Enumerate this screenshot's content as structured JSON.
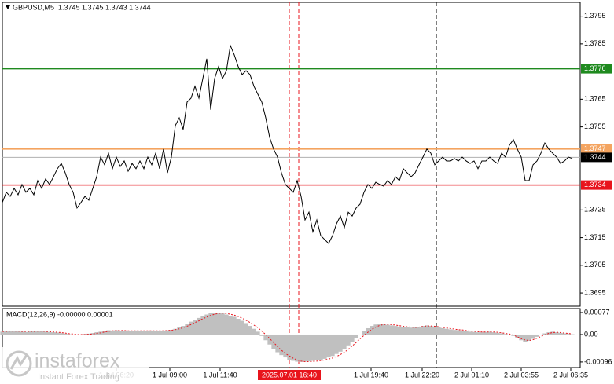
{
  "chart_data": [
    {
      "type": "line",
      "title": "GBPUSD,M5  1.3745 1.3745 1.3743 1.3744",
      "series": [
        {
          "name": "GBPUSD",
          "color": "#000000",
          "values": [
            1.37277,
            1.37314,
            1.37299,
            1.37328,
            1.37305,
            1.37342,
            1.37314,
            1.37328,
            1.37305,
            1.37356,
            1.37328,
            1.37362,
            1.37342,
            1.3737,
            1.37399,
            1.37418,
            1.37384,
            1.37342,
            1.37314,
            1.37257,
            1.37277,
            1.37299,
            1.37285,
            1.37328,
            1.3737,
            1.37441,
            1.37413,
            1.37455,
            1.37399,
            1.37441,
            1.37407,
            1.37427,
            1.3739,
            1.37418,
            1.37399,
            1.37427,
            1.37399,
            1.37441,
            1.37413,
            1.37455,
            1.37399,
            1.3747,
            1.37384,
            1.37441,
            1.37555,
            1.37583,
            1.37541,
            1.3764,
            1.37654,
            1.37697,
            1.37654,
            1.37725,
            1.37796,
            1.37612,
            1.37725,
            1.37768,
            1.37725,
            1.37753,
            1.37844,
            1.3781,
            1.37768,
            1.37739,
            1.37753,
            1.37739,
            1.37697,
            1.37668,
            1.3764,
            1.37583,
            1.37512,
            1.3747,
            1.37441,
            1.37384,
            1.37342,
            1.37328,
            1.37314,
            1.37356,
            1.37299,
            1.37214,
            1.37242,
            1.37171,
            1.37214,
            1.37157,
            1.37143,
            1.37129,
            1.37157,
            1.372,
            1.37228,
            1.37186,
            1.37242,
            1.37228,
            1.37257,
            1.37271,
            1.37314,
            1.37342,
            1.37328,
            1.3735,
            1.37342,
            1.37336,
            1.37356,
            1.37342,
            1.3737,
            1.37356,
            1.37399,
            1.37384,
            1.3737,
            1.37384,
            1.37413,
            1.37441,
            1.3747,
            1.37455,
            1.37413,
            1.37427,
            1.37441,
            1.37427,
            1.37427,
            1.37436,
            1.37427,
            1.37441,
            1.37427,
            1.37418,
            1.37427,
            1.37399,
            1.37427,
            1.37427,
            1.37441,
            1.37427,
            1.37418,
            1.37455,
            1.37441,
            1.37484,
            1.37504,
            1.3747,
            1.37441,
            1.37356,
            1.37356,
            1.37413,
            1.37427,
            1.37455,
            1.37492,
            1.3747,
            1.37455,
            1.37441,
            1.37418,
            1.37427,
            1.37441,
            1.37436
          ]
        }
      ],
      "xlim": [
        0,
        147
      ],
      "xticks": [
        {
          "value": 29,
          "label": "1 Jul 06:20"
        },
        {
          "value": 42.6,
          "label": "1 Jul 09:00"
        },
        {
          "value": 55.4,
          "label": "1 Jul 11:40"
        },
        {
          "value": 93.8,
          "label": "1 Jul 19:40"
        },
        {
          "value": 106.8,
          "label": "1 Jul 22:20"
        },
        {
          "value": 119.4,
          "label": "2 Jul 01:10"
        },
        {
          "value": 132,
          "label": "2 Jul 03:55"
        },
        {
          "value": 144.6,
          "label": "2 Jul 06:35"
        }
      ],
      "ylim": [
        1.36902,
        1.38
      ],
      "yticks": [
        1.3795,
        1.3785,
        1.3765,
        1.3755,
        1.3725,
        1.3715,
        1.3705,
        1.3695
      ],
      "hlines": [
        {
          "value": 1.3776,
          "color": "#1f8a1f"
        },
        {
          "value": 1.3747,
          "color": "#f4a460"
        },
        {
          "value": 1.3734,
          "color": "#e8141c"
        }
      ],
      "last_price": {
        "value": 1.3744,
        "color": "#000000"
      },
      "vlines": [
        {
          "value": 73,
          "color": "#e8141c",
          "label": "2025.07.01 16:40"
        },
        {
          "value": 75.4,
          "color": "#e8141c"
        },
        {
          "value": 110.4,
          "color": "#000000"
        }
      ]
    },
    {
      "type": "macd",
      "title": "MACD(12,26,9) -0.00000 0.00001",
      "series": [
        {
          "name": "MACD",
          "color": "#c0c0c0",
          "values": [
            0.0001,
            0.00012,
            0.00013,
            0.00012,
            0.00011,
            0.0001,
            9e-05,
            0.00011,
            0.00012,
            0.00013,
            0.00012,
            0.0001,
            9e-05,
            8e-05,
            7e-05,
            5e-05,
            3e-05,
            1e-05,
            -1e-05,
            -2e-05,
            0,
            2e-05,
            3e-05,
            5e-05,
            8e-05,
            0.0001,
            0.00013,
            0.00015,
            0.00014,
            0.00015,
            0.00013,
            0.00014,
            0.00012,
            0.00013,
            0.00014,
            0.00012,
            0.00013,
            0.00012,
            0.00014,
            0.00013,
            0.00012,
            0.00014,
            0.00015,
            0.00016,
            0.0002,
            0.00025,
            0.0003,
            0.00038,
            0.00045,
            0.00052,
            0.00058,
            0.00065,
            0.0007,
            0.00075,
            0.00077,
            0.00076,
            0.00074,
            0.0007,
            0.00065,
            0.00062,
            0.00055,
            0.00048,
            0.0004,
            0.0003,
            0.0002,
            0.0001,
            -5e-05,
            -0.0002,
            -0.00035,
            -0.0005,
            -0.00062,
            -0.00072,
            -0.0008,
            -0.00088,
            -0.00092,
            -0.00095,
            -0.00096,
            -0.00095,
            -0.00094,
            -0.00092,
            -0.0009,
            -0.00088,
            -0.00085,
            -0.0008,
            -0.00075,
            -0.00068,
            -0.0006,
            -0.0005,
            -0.00038,
            -0.00025,
            -0.00012,
            0,
            0.00012,
            0.00022,
            0.0003,
            0.00035,
            0.00038,
            0.00036,
            0.00034,
            0.00032,
            0.0003,
            0.00028,
            0.00026,
            0.00025,
            0.00024,
            0.00025,
            0.00027,
            0.0003,
            0.00032,
            0.0003,
            0.00028,
            0.00025,
            0.00022,
            0.0002,
            0.00018,
            0.00016,
            0.00015,
            0.00014,
            0.00012,
            0.0001,
            9e-05,
            8e-05,
            8e-05,
            9e-05,
            0.0001,
            8e-05,
            6e-05,
            4e-05,
            2e-05,
            0,
            -5e-05,
            -0.00012,
            -0.0002,
            -0.00025,
            -0.00022,
            -0.00015,
            -8e-05,
            -2e-05,
            4e-05,
            8e-05,
            0.0001,
            8e-05,
            6e-05,
            4e-05,
            2e-05,
            1e-05
          ]
        },
        {
          "name": "Signal",
          "color": "#e8141c",
          "values": [
            0.00011,
            0.00011,
            0.00012,
            0.00012,
            0.00012,
            0.00011,
            0.00011,
            0.00011,
            0.00011,
            0.00012,
            0.00012,
            0.00011,
            0.0001,
            9e-05,
            8e-05,
            7e-05,
            5e-05,
            3e-05,
            2e-05,
            0,
            0,
            0,
            1e-05,
            2e-05,
            4e-05,
            6e-05,
            9e-05,
            0.00011,
            0.00013,
            0.00014,
            0.00014,
            0.00014,
            0.00013,
            0.00013,
            0.00013,
            0.00013,
            0.00013,
            0.00013,
            0.00013,
            0.00013,
            0.00013,
            0.00013,
            0.00014,
            0.00015,
            0.00017,
            0.0002,
            0.00024,
            0.00029,
            0.00035,
            0.00042,
            0.00048,
            0.00055,
            0.00061,
            0.00067,
            0.00071,
            0.00074,
            0.00075,
            0.00074,
            0.00071,
            0.00068,
            0.00063,
            0.00057,
            0.0005,
            0.00042,
            0.00033,
            0.00024,
            0.00012,
            0,
            -0.00014,
            -0.00028,
            -0.00042,
            -0.00055,
            -0.00066,
            -0.00075,
            -0.00083,
            -0.00089,
            -0.00093,
            -0.00095,
            -0.00095,
            -0.00094,
            -0.00093,
            -0.00091,
            -0.00089,
            -0.00086,
            -0.00082,
            -0.00077,
            -0.0007,
            -0.00062,
            -0.00052,
            -0.0004,
            -0.00028,
            -0.00015,
            -3e-05,
            8e-05,
            0.00018,
            0.00026,
            0.00032,
            0.00035,
            0.00036,
            0.00035,
            0.00033,
            0.00031,
            0.00029,
            0.00027,
            0.00026,
            0.00025,
            0.00026,
            0.00028,
            0.0003,
            0.0003,
            0.00029,
            0.00027,
            0.00025,
            0.00023,
            0.00021,
            0.00019,
            0.00017,
            0.00016,
            0.00014,
            0.00012,
            0.00011,
            0.0001,
            9e-05,
            9e-05,
            9e-05,
            9e-05,
            8e-05,
            6e-05,
            4e-05,
            2e-05,
            -2e-05,
            -8e-05,
            -0.00014,
            -0.00019,
            -0.00021,
            -0.00018,
            -0.00013,
            -7e-05,
            -1e-05,
            4e-05,
            7e-05,
            8e-05,
            7e-05,
            5e-05,
            4e-05,
            2e-05
          ]
        }
      ],
      "xlim": [
        0,
        147
      ],
      "ylim": [
        -0.001155,
        0.000907
      ],
      "yticks": [
        0.00077,
        {
          "value": 0,
          "label": "0.00"
        },
        -0.00096
      ]
    }
  ],
  "watermark": {
    "name": "instaforex",
    "tagline": "Instant Forex Trading"
  }
}
